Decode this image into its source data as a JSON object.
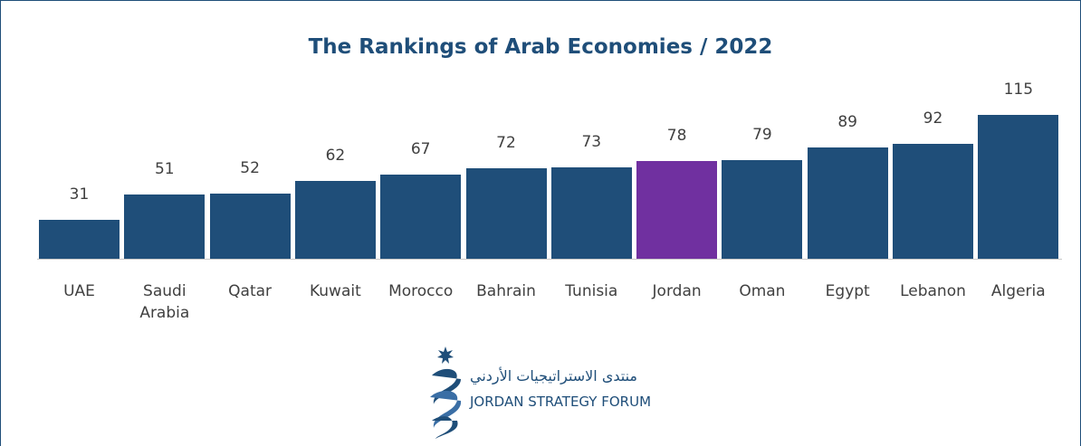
{
  "chart_data": {
    "type": "bar",
    "title": "The Rankings of Arab Economies / 2022",
    "categories": [
      "UAE",
      "Saudi Arabia",
      "Qatar",
      "Kuwait",
      "Morocco",
      "Bahrain",
      "Tunisia",
      "Jordan",
      "Oman",
      "Egypt",
      "Lebanon",
      "Algeria"
    ],
    "values": [
      31,
      51,
      52,
      62,
      67,
      72,
      73,
      78,
      79,
      89,
      92,
      115
    ],
    "colors": [
      "#1f4e79",
      "#1f4e79",
      "#1f4e79",
      "#1f4e79",
      "#1f4e79",
      "#1f4e79",
      "#1f4e79",
      "#7030a0",
      "#1f4e79",
      "#1f4e79",
      "#1f4e79",
      "#1f4e79"
    ]
  },
  "logo": {
    "arabic": "منتدى الاستراتيجيات الأردني",
    "english": "JORDAN STRATEGY FORUM"
  }
}
